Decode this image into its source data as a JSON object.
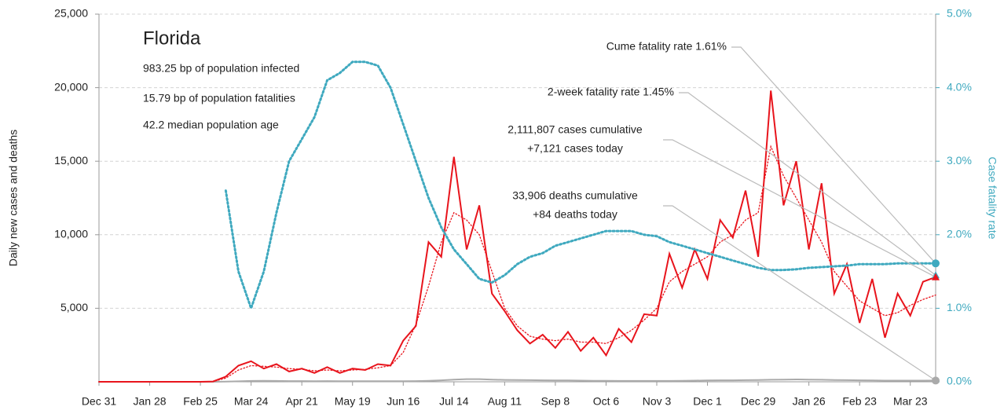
{
  "chart_data": {
    "type": "line",
    "title": "Florida",
    "subtitle": [
      "983.25 bp of population infected",
      "15.79 bp of population fatalities",
      "42.2 median population age"
    ],
    "ylabel": "Daily new cases and deaths",
    "y2label": "Case fatality rate",
    "categories": [
      "Dec 31",
      null,
      null,
      null,
      "Jan 28",
      null,
      null,
      null,
      "Feb 25",
      null,
      null,
      null,
      "Mar 24",
      null,
      null,
      null,
      "Apr 21",
      null,
      null,
      null,
      "May 19",
      null,
      null,
      null,
      "Jun 16",
      null,
      null,
      null,
      "Jul 14",
      null,
      null,
      null,
      "Aug 11",
      null,
      null,
      null,
      "Sep 8",
      null,
      null,
      null,
      "Oct 6",
      null,
      null,
      null,
      "Nov 3",
      null,
      null,
      null,
      "Dec 1",
      null,
      null,
      null,
      "Dec 29",
      null,
      null,
      null,
      "Jan 26",
      null,
      null,
      null,
      "Feb 23",
      null,
      null,
      null,
      "Mar 23",
      null,
      null
    ],
    "ylim": [
      0,
      25000
    ],
    "yticks": [
      {
        "value": 5000,
        "label": "5,000"
      },
      {
        "value": 10000,
        "label": "10,000"
      },
      {
        "value": 15000,
        "label": "15,000"
      },
      {
        "value": 20000,
        "label": "20,000"
      },
      {
        "value": 25000,
        "label": "25,000"
      }
    ],
    "y2lim": [
      0,
      5
    ],
    "y2ticks": [
      {
        "value": 0,
        "label": "0.0%"
      },
      {
        "value": 1,
        "label": "1.0%"
      },
      {
        "value": 2,
        "label": "2.0%"
      },
      {
        "value": 3,
        "label": "3.0%"
      },
      {
        "value": 4,
        "label": "4.0%"
      },
      {
        "value": 5,
        "label": "5.0%"
      }
    ],
    "grid": true,
    "series": [
      {
        "color": "#e8141c",
        "style": "solid",
        "values": [
          0,
          0,
          0,
          0,
          0,
          0,
          0,
          0,
          0,
          20,
          350,
          1100,
          1400,
          900,
          1200,
          700,
          900,
          600,
          1000,
          600,
          900,
          800,
          1200,
          1100,
          2800,
          3800,
          9500,
          8500,
          15300,
          9000,
          12000,
          6000,
          4800,
          3500,
          2600,
          3200,
          2300,
          3400,
          2100,
          3000,
          1800,
          3600,
          2700,
          4600,
          4500,
          8700,
          6400,
          9000,
          7000,
          11000,
          9800,
          13000,
          8500,
          19800,
          12000,
          15000,
          9000,
          13500,
          6000,
          8000,
          4000,
          7000,
          3000,
          6000,
          4500,
          6800,
          7121
        ]
      },
      {
        "color": "#e8141c",
        "style": "dotted",
        "values": [
          0,
          0,
          0,
          0,
          0,
          0,
          0,
          0,
          0,
          15,
          250,
          800,
          1100,
          1050,
          1000,
          900,
          850,
          750,
          800,
          750,
          800,
          850,
          950,
          1100,
          2000,
          3900,
          6500,
          9500,
          11500,
          11000,
          10000,
          7500,
          5000,
          3800,
          3100,
          2900,
          2800,
          2900,
          2700,
          2700,
          2600,
          3000,
          3500,
          4200,
          5000,
          6800,
          7500,
          8000,
          8500,
          9500,
          10000,
          11000,
          11500,
          16000,
          14000,
          12500,
          11000,
          9500,
          7500,
          6500,
          5500,
          5000,
          4500,
          4700,
          5200,
          5600,
          5900
        ]
      },
      {
        "color": "#3fa9bf",
        "style": "dotted",
        "axis": "y2",
        "values": [
          null,
          null,
          null,
          null,
          null,
          null,
          null,
          null,
          null,
          null,
          2.6,
          1.5,
          1.0,
          1.5,
          2.3,
          3.0,
          3.3,
          3.6,
          4.1,
          4.2,
          4.35,
          4.35,
          4.3,
          4.0,
          3.5,
          3.0,
          2.5,
          2.1,
          1.8,
          1.6,
          1.4,
          1.35,
          1.45,
          1.6,
          1.7,
          1.75,
          1.85,
          1.9,
          1.95,
          2.0,
          2.05,
          2.05,
          2.05,
          2.0,
          1.98,
          1.9,
          1.85,
          1.8,
          1.75,
          1.7,
          1.65,
          1.6,
          1.55,
          1.52,
          1.52,
          1.53,
          1.55,
          1.56,
          1.57,
          1.58,
          1.6,
          1.6,
          1.6,
          1.61,
          1.61,
          1.61,
          1.61
        ]
      },
      {
        "color": "#aaaaaa",
        "style": "solid",
        "values": [
          0,
          0,
          0,
          0,
          0,
          0,
          0,
          0,
          0,
          0,
          10,
          30,
          60,
          70,
          60,
          50,
          50,
          40,
          50,
          40,
          40,
          40,
          40,
          40,
          40,
          50,
          70,
          100,
          150,
          180,
          180,
          150,
          130,
          120,
          110,
          100,
          90,
          90,
          80,
          70,
          70,
          60,
          60,
          60,
          60,
          60,
          70,
          80,
          90,
          100,
          100,
          110,
          120,
          140,
          150,
          160,
          150,
          140,
          120,
          110,
          100,
          90,
          80,
          80,
          80,
          80,
          84
        ]
      }
    ],
    "annotations": [
      {
        "lines": [
          "Cume fatality rate 1.61%"
        ],
        "value": 1.61,
        "axis": "y2",
        "marker": "circle",
        "color": "#3fa9bf"
      },
      {
        "lines": [
          "2-week fatality rate 1.45%"
        ],
        "value": 1.45,
        "axis": "y2",
        "marker": "triangle",
        "color": "#3fa9bf"
      },
      {
        "lines": [
          "2,111,807 cases cumulative",
          "+7,121 cases today"
        ],
        "value": 7121,
        "axis": "y",
        "marker": "triangle",
        "color": "#e8141c"
      },
      {
        "lines": [
          "33,906 deaths cumulative",
          "+84 deaths today"
        ],
        "value": 84,
        "axis": "y",
        "marker": "circle",
        "color": "#aaaaaa"
      }
    ]
  }
}
